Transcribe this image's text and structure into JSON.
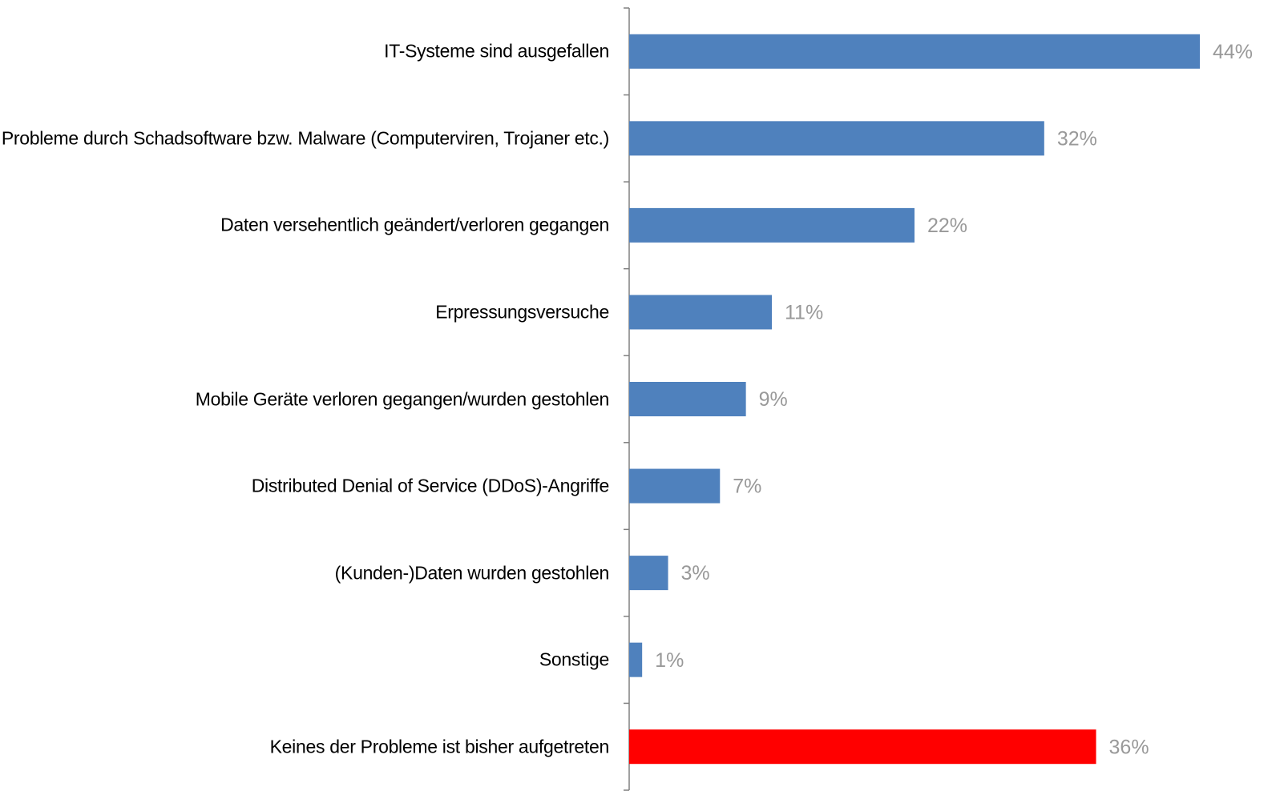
{
  "chart_data": {
    "type": "bar",
    "orientation": "horizontal",
    "categories": [
      "IT-Systeme sind ausgefallen",
      "Probleme durch Schadsoftware bzw. Malware (Computerviren, Trojaner etc.)",
      "Daten versehentlich geändert/verloren gegangen",
      "Erpressungsversuche",
      "Mobile Geräte verloren gegangen/wurden gestohlen",
      "Distributed Denial of Service (DDoS)-Angriffe",
      "(Kunden-)Daten wurden gestohlen",
      "Sonstige",
      "Keines der Probleme ist bisher aufgetreten"
    ],
    "values": [
      44,
      32,
      22,
      11,
      9,
      7,
      3,
      1,
      36
    ],
    "value_labels": [
      "44%",
      "32%",
      "22%",
      "11%",
      "9%",
      "7%",
      "3%",
      "1%",
      "36%"
    ],
    "colors": [
      "#4f81bd",
      "#4f81bd",
      "#4f81bd",
      "#4f81bd",
      "#4f81bd",
      "#4f81bd",
      "#4f81bd",
      "#4f81bd",
      "#ff0000"
    ]
  }
}
